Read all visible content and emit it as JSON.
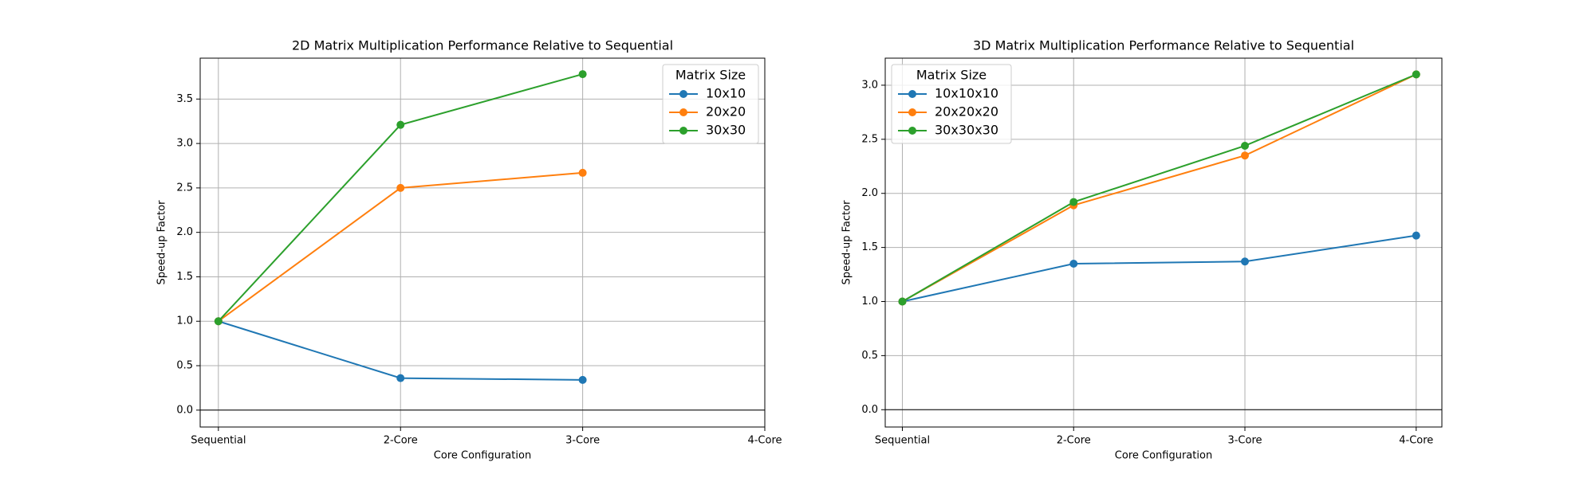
{
  "chart_data": [
    {
      "type": "line",
      "title": "2D Matrix Multiplication Performance Relative to Sequential",
      "x_label": "Core Configuration",
      "y_label": "Speed-up Factor",
      "categories": [
        "Sequential",
        "2-Core",
        "3-Core",
        "4-Core"
      ],
      "xlim": [
        -0.1,
        3.0
      ],
      "ylim": [
        -0.19,
        3.96
      ],
      "yticks": [
        {
          "value": 0,
          "label": "0.0"
        },
        0.5,
        {
          "value": 1,
          "label": "1.0"
        },
        1.5,
        {
          "value": 2,
          "label": "2.0"
        },
        2.5,
        {
          "value": 3,
          "label": "3.0"
        },
        3.5
      ],
      "grid": true,
      "legend_title": "Matrix Size",
      "legend_position": "upper right",
      "series": [
        {
          "name": "10x10",
          "color": "#1f77b4",
          "values": [
            1.0,
            0.36,
            0.34,
            null
          ]
        },
        {
          "name": "20x20",
          "color": "#ff7f0e",
          "values": [
            1.0,
            2.5,
            2.67,
            null
          ]
        },
        {
          "name": "30x30",
          "color": "#2ca02c",
          "values": [
            1.0,
            3.21,
            3.78,
            null
          ]
        }
      ]
    },
    {
      "type": "line",
      "title": "3D Matrix Multiplication Performance Relative to Sequential",
      "x_label": "Core Configuration",
      "y_label": "Speed-up Factor",
      "categories": [
        "Sequential",
        "2-Core",
        "3-Core",
        "4-Core"
      ],
      "xlim": [
        -0.1,
        3.15
      ],
      "ylim": [
        -0.16,
        3.25
      ],
      "yticks": [
        {
          "value": 0,
          "label": "0.0"
        },
        0.5,
        {
          "value": 1,
          "label": "1.0"
        },
        1.5,
        {
          "value": 2,
          "label": "2.0"
        },
        2.5,
        {
          "value": 3,
          "label": "3.0"
        }
      ],
      "grid": true,
      "legend_title": "Matrix Size",
      "legend_position": "upper left",
      "series": [
        {
          "name": "10x10x10",
          "color": "#1f77b4",
          "values": [
            1.0,
            1.35,
            1.37,
            1.61
          ]
        },
        {
          "name": "20x20x20",
          "color": "#ff7f0e",
          "values": [
            1.0,
            1.89,
            2.35,
            3.1
          ]
        },
        {
          "name": "30x30x30",
          "color": "#2ca02c",
          "values": [
            1.0,
            1.92,
            2.44,
            3.1
          ]
        }
      ]
    }
  ]
}
